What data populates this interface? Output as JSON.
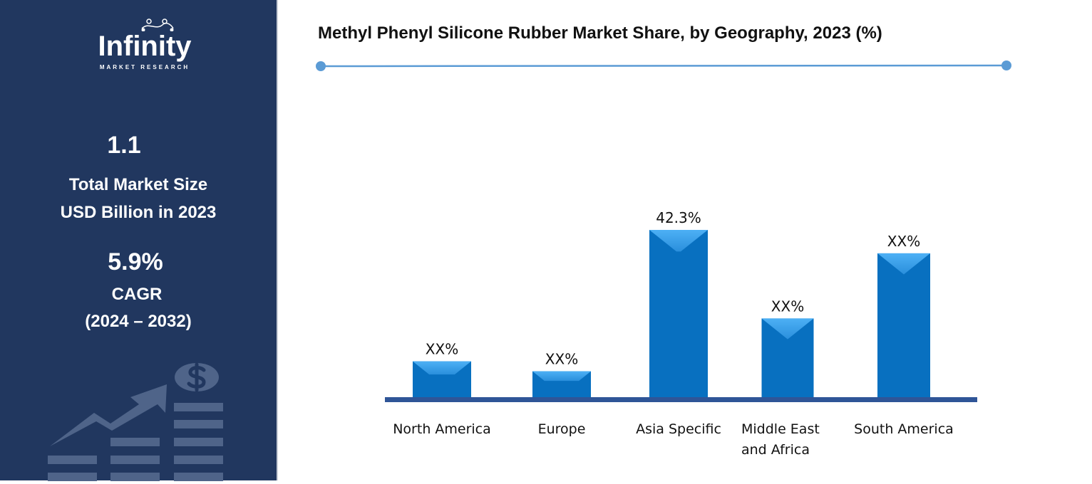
{
  "sidebar": {
    "logo_text": "Infinity",
    "logo_subtext": "MARKET RESEARCH",
    "market_size_value": "1.1",
    "market_size_label_line1": "Total Market Size",
    "market_size_label_line2": "USD Billion in 2023",
    "cagr_value": "5.9%",
    "cagr_label": "CAGR",
    "cagr_period": "(2024 – 2032)",
    "decor_icon": "growth-chart-dollar-icon",
    "background_color": "#21375f"
  },
  "chart_data": {
    "type": "bar",
    "title": "Methyl Phenyl Silicone Rubber Market Share, by Geography, 2023 (%)",
    "categories": [
      "North America",
      "Europe",
      "Asia Specific",
      "Middle East and Africa",
      "South America"
    ],
    "values": [
      9.2,
      6.7,
      42.3,
      20.0,
      36.4
    ],
    "data_labels": [
      "XX%",
      "XX%",
      "42.3%",
      "XX%",
      "XX%"
    ],
    "ylim": [
      0,
      42.3
    ],
    "grid": false,
    "bar_color": "#0870c0",
    "axis_color": "#2f5597",
    "accent_line_color": "#5b9bd5"
  }
}
